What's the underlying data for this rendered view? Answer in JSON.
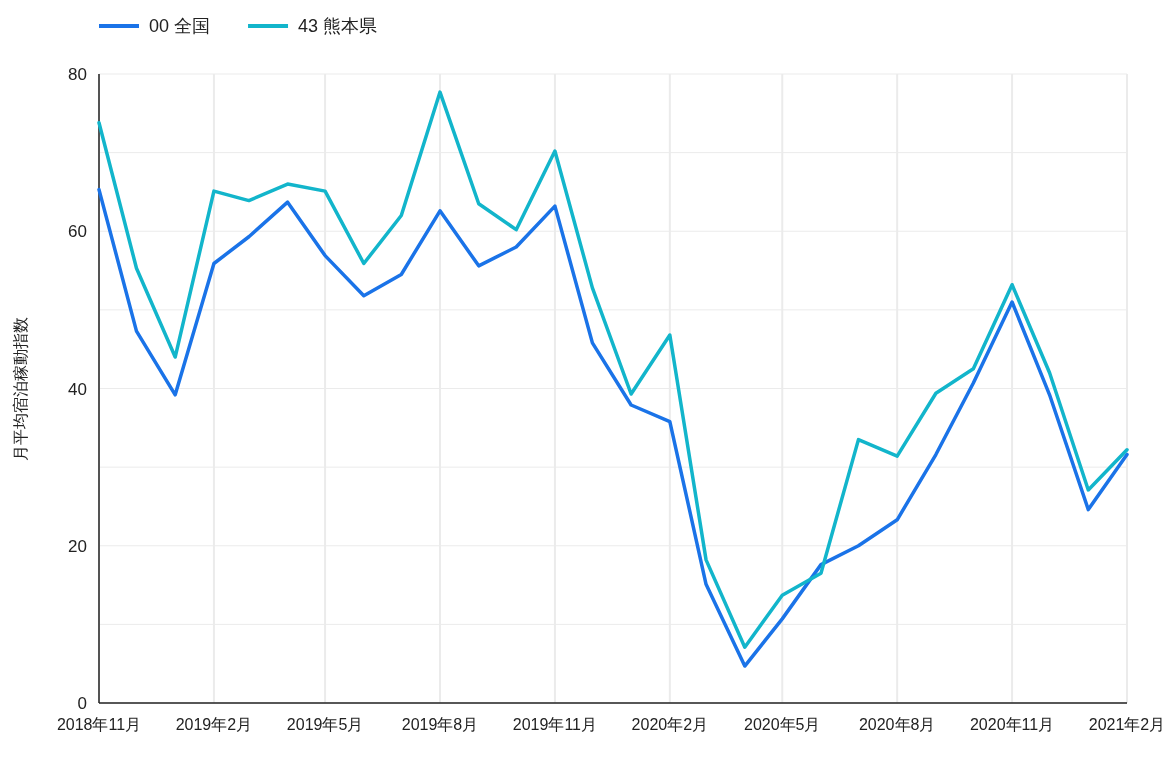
{
  "chart_data": {
    "type": "line",
    "ylabel": "月平均宿泊稼動指数",
    "x": [
      "2018-11",
      "2018-12",
      "2019-01",
      "2019-02",
      "2019-03",
      "2019-04",
      "2019-05",
      "2019-06",
      "2019-07",
      "2019-08",
      "2019-09",
      "2019-10",
      "2019-11",
      "2019-12",
      "2020-01",
      "2020-02",
      "2020-03",
      "2020-04",
      "2020-05",
      "2020-06",
      "2020-07",
      "2020-08",
      "2020-09",
      "2020-10",
      "2020-11",
      "2020-12",
      "2021-01",
      "2021-02"
    ],
    "series": [
      {
        "name": "00 全国",
        "color": "#1a73e8",
        "values": [
          65.3,
          47.3,
          39.2,
          55.9,
          59.3,
          63.7,
          56.9,
          51.8,
          54.5,
          62.6,
          55.6,
          58.0,
          63.2,
          45.8,
          37.9,
          35.8,
          15.1,
          4.7,
          10.7,
          17.6,
          20.0,
          23.3,
          31.6,
          40.7,
          51.0,
          39.2,
          24.6,
          31.6
        ]
      },
      {
        "name": "43 熊本県",
        "color": "#12b5cb",
        "values": [
          73.8,
          55.3,
          44.0,
          65.1,
          63.9,
          66.0,
          65.1,
          55.9,
          62.0,
          77.7,
          63.5,
          60.2,
          70.2,
          52.8,
          39.3,
          46.8,
          18.2,
          7.1,
          13.7,
          16.5,
          33.5,
          31.4,
          39.4,
          42.5,
          53.2,
          42.0,
          27.1,
          32.2
        ]
      }
    ],
    "xlim": [
      "2018-11",
      "2021-02"
    ],
    "xticks": [
      {
        "value": "2018-11",
        "label": "2018年11月"
      },
      {
        "value": "2019-02",
        "label": "2019年2月"
      },
      {
        "value": "2019-05",
        "label": "2019年5月"
      },
      {
        "value": "2019-08",
        "label": "2019年8月"
      },
      {
        "value": "2019-11",
        "label": "2019年11月"
      },
      {
        "value": "2020-02",
        "label": "2020年2月"
      },
      {
        "value": "2020-05",
        "label": "2020年5月"
      },
      {
        "value": "2020-08",
        "label": "2020年8月"
      },
      {
        "value": "2020-11",
        "label": "2020年11月"
      },
      {
        "value": "2021-02",
        "label": "2021年2月"
      }
    ],
    "ylim": [
      0,
      80
    ],
    "yticks": [
      0,
      {
        "value": 10,
        "label": null
      },
      20,
      {
        "value": 30,
        "label": null
      },
      40,
      {
        "value": 50,
        "label": null
      },
      60,
      {
        "value": 70,
        "label": null
      },
      80
    ],
    "grid": true,
    "legend": "top left",
    "line_style": "solid"
  }
}
